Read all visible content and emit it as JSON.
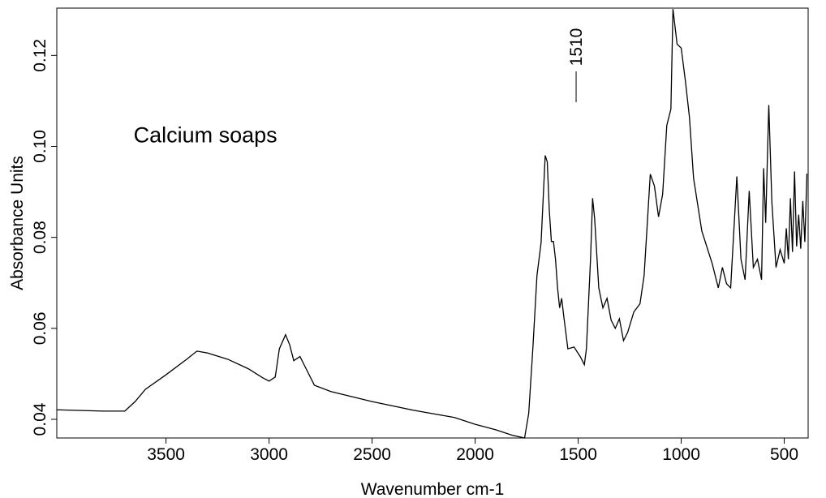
{
  "chart_data": {
    "type": "line",
    "xlabel": "Wavenumber cm-1",
    "ylabel": "Absorbance Units",
    "annotations": [
      {
        "text": "Calcium soaps",
        "x": 3500,
        "y": 0.1
      },
      {
        "label": "1510",
        "x": 1510
      }
    ],
    "xlim": [
      4030,
      384
    ],
    "ylim": [
      0.0359,
      0.1304
    ],
    "xticks": [
      3500,
      3000,
      2500,
      2000,
      1500,
      1000,
      500
    ],
    "yticks": [
      0.04,
      0.06,
      0.08,
      {
        "value": 0.1,
        "label": "0.10"
      },
      0.12
    ],
    "grid": false,
    "x": [
      4030,
      3800,
      3700,
      3650,
      3600,
      3500,
      3400,
      3350,
      3300,
      3200,
      3100,
      3030,
      3000,
      2970,
      2950,
      2920,
      2900,
      2880,
      2850,
      2820,
      2780,
      2700,
      2500,
      2300,
      2100,
      2000,
      1900,
      1820,
      1760,
      1740,
      1720,
      1700,
      1680,
      1660,
      1650,
      1640,
      1630,
      1620,
      1610,
      1600,
      1590,
      1580,
      1570,
      1550,
      1520,
      1490,
      1470,
      1460,
      1440,
      1430,
      1420,
      1400,
      1380,
      1360,
      1340,
      1320,
      1300,
      1280,
      1260,
      1230,
      1200,
      1180,
      1150,
      1130,
      1110,
      1090,
      1070,
      1050,
      1040,
      1020,
      1000,
      980,
      960,
      940,
      900,
      850,
      820,
      800,
      780,
      760,
      730,
      710,
      690,
      670,
      650,
      630,
      610,
      600,
      590,
      575,
      560,
      540,
      520,
      500,
      490,
      480,
      470,
      460,
      450,
      440,
      430,
      420,
      410,
      400,
      390
    ],
    "series": [
      {
        "name": "Calcium soaps",
        "color": "#000000",
        "values": [
          0.0421,
          0.0418,
          0.0418,
          0.0439,
          0.0466,
          0.0498,
          0.0532,
          0.055,
          0.0546,
          0.0532,
          0.0511,
          0.0491,
          0.0484,
          0.0493,
          0.0555,
          0.0586,
          0.0564,
          0.0529,
          0.0538,
          0.0511,
          0.0475,
          0.0461,
          0.0439,
          0.042,
          0.0404,
          0.0389,
          0.0377,
          0.0365,
          0.0359,
          0.0413,
          0.0555,
          0.0716,
          0.0788,
          0.098,
          0.0966,
          0.0859,
          0.0791,
          0.0791,
          0.0752,
          0.0689,
          0.0645,
          0.0666,
          0.0627,
          0.0555,
          0.0559,
          0.0538,
          0.052,
          0.0555,
          0.0752,
          0.0886,
          0.0841,
          0.0689,
          0.0645,
          0.0666,
          0.0618,
          0.06,
          0.0621,
          0.0573,
          0.0591,
          0.0636,
          0.0654,
          0.0716,
          0.0939,
          0.0913,
          0.0845,
          0.0895,
          0.1046,
          0.1082,
          0.1302,
          0.1225,
          0.1216,
          0.1145,
          0.1064,
          0.093,
          0.0814,
          0.0743,
          0.0689,
          0.0734,
          0.0698,
          0.0689,
          0.0934,
          0.0752,
          0.0707,
          0.0902,
          0.0734,
          0.0752,
          0.0707,
          0.0952,
          0.0832,
          0.1091,
          0.0877,
          0.0734,
          0.0773,
          0.0743,
          0.082,
          0.0752,
          0.0886,
          0.0768,
          0.0945,
          0.078,
          0.085,
          0.0775,
          0.088,
          0.079,
          0.094
        ]
      }
    ]
  }
}
